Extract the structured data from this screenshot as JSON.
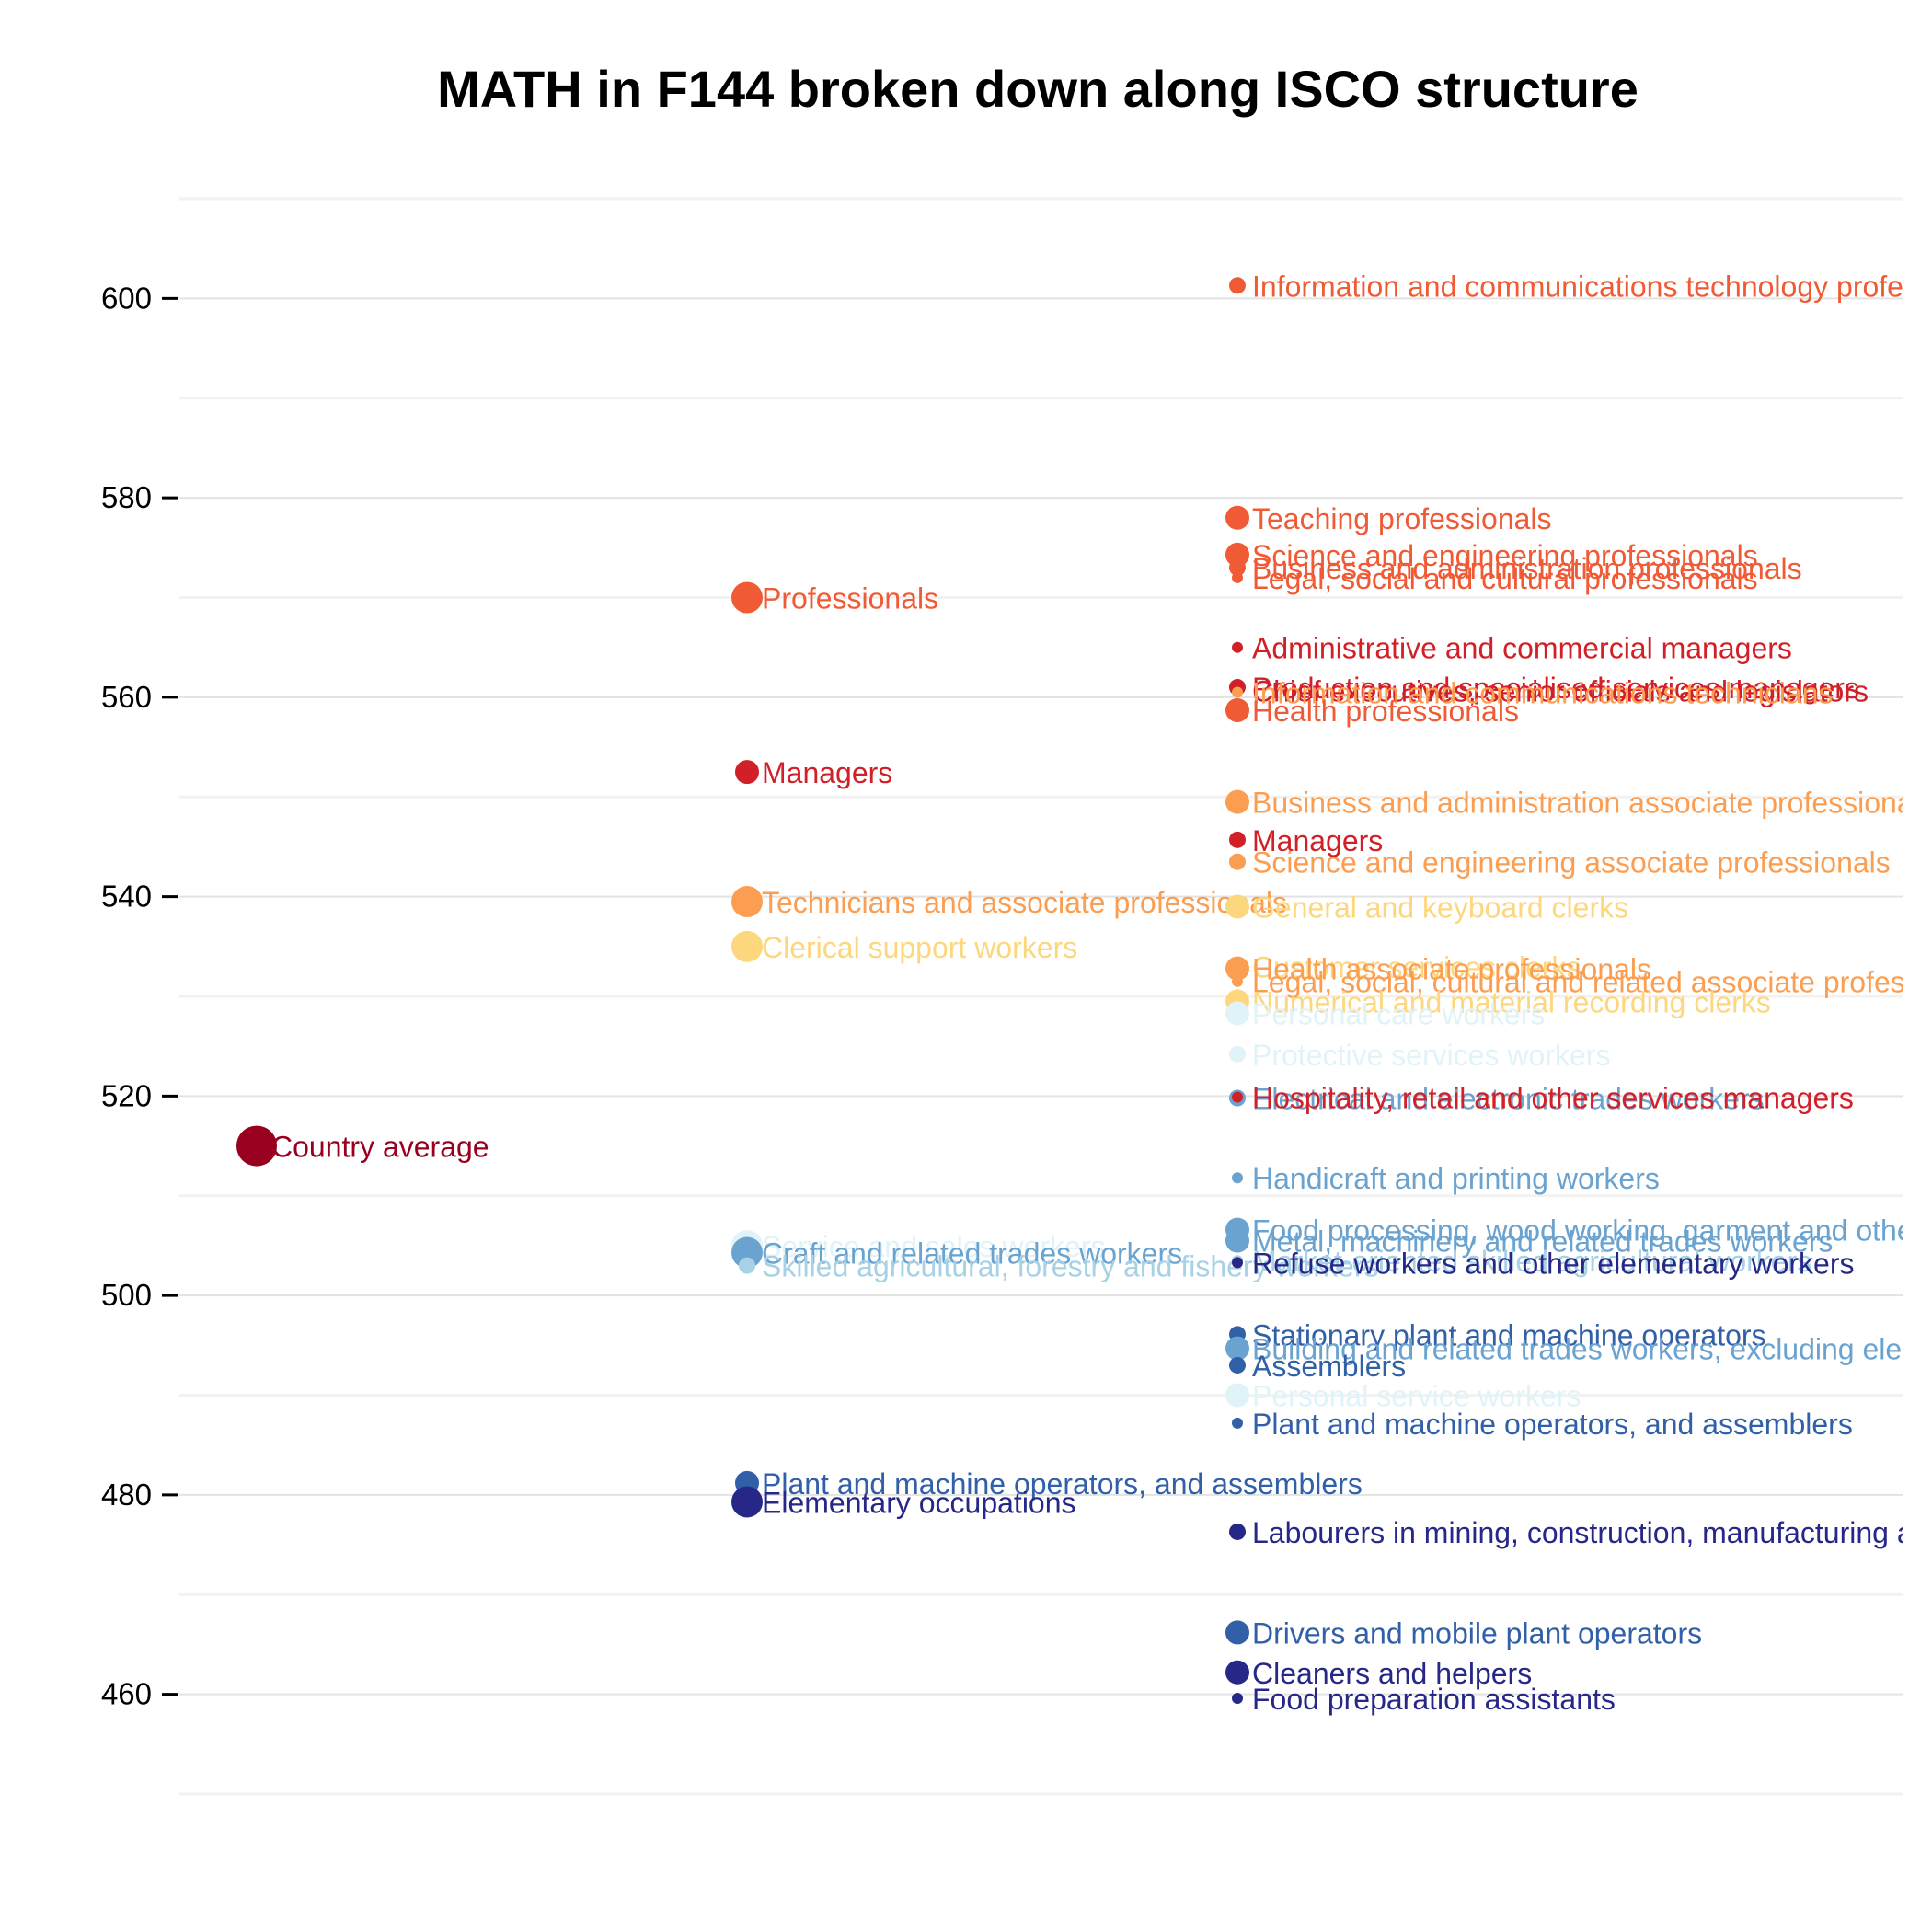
{
  "chart_data": {
    "type": "scatter",
    "title": "MATH in F144 broken down along ISCO structure",
    "xlabel": "",
    "ylabel": "",
    "ylim": [
      450,
      610
    ],
    "yticks": [
      460,
      480,
      500,
      520,
      540,
      560,
      580,
      600
    ],
    "grid": true,
    "legend": "none",
    "colors": {
      "country": "#99001f",
      "managers": "#d22028",
      "professionals": "#f05a35",
      "technicians": "#fb9e52",
      "clerical": "#fdd77e",
      "services": "#e0f3f8",
      "agricultural": "#a7d1e5",
      "craft": "#6aa3d0",
      "operators": "#3160a8",
      "elementary": "#262787"
    },
    "columns": [
      {
        "name": "level0",
        "points": [
          {
            "label": "Country average",
            "value": 515,
            "size": "xl",
            "group": "country"
          }
        ]
      },
      {
        "name": "level1",
        "points": [
          {
            "label": "Professionals",
            "value": 570,
            "size": "l",
            "group": "professionals"
          },
          {
            "label": "Managers",
            "value": 552.5,
            "size": "m",
            "group": "managers"
          },
          {
            "label": "Technicians and associate professionals",
            "value": 539.5,
            "size": "l",
            "group": "technicians"
          },
          {
            "label": "Clerical support workers",
            "value": 535,
            "size": "l",
            "group": "clerical"
          },
          {
            "label": "Service and sales workers",
            "value": 505,
            "size": "l",
            "group": "services"
          },
          {
            "label": "Craft and related trades workers",
            "value": 504.3,
            "size": "l",
            "group": "craft"
          },
          {
            "label": "Skilled agricultural, forestry and fishery workers",
            "value": 503,
            "size": "s",
            "group": "agricultural"
          },
          {
            "label": "Plant and machine operators, and assemblers",
            "value": 481.2,
            "size": "m",
            "group": "operators"
          },
          {
            "label": "Elementary occupations",
            "value": 479.3,
            "size": "l",
            "group": "elementary"
          }
        ]
      },
      {
        "name": "level2",
        "points": [
          {
            "label": "Information and communications technology professionals",
            "value": 601.3,
            "size": "s",
            "group": "professionals"
          },
          {
            "label": "Teaching professionals",
            "value": 578,
            "size": "m",
            "group": "professionals"
          },
          {
            "label": "Science and engineering professionals",
            "value": 574.3,
            "size": "m",
            "group": "professionals"
          },
          {
            "label": "Business and administration professionals",
            "value": 573,
            "size": "s",
            "group": "professionals"
          },
          {
            "label": "Legal, social and cultural professionals",
            "value": 572,
            "size": "xs",
            "group": "professionals"
          },
          {
            "label": "Administrative and commercial managers",
            "value": 565,
            "size": "xs",
            "group": "managers"
          },
          {
            "label": "Production and specialised services managers",
            "value": 561,
            "size": "s",
            "group": "managers"
          },
          {
            "label": "Chief executives, senior officials and legislators",
            "value": 560.7,
            "size": "xs",
            "group": "managers"
          },
          {
            "label": "Information and communications technicians",
            "value": 560.5,
            "size": "xs",
            "group": "technicians"
          },
          {
            "label": "Health professionals",
            "value": 558.7,
            "size": "m",
            "group": "professionals"
          },
          {
            "label": "Business and administration associate professionals",
            "value": 549.5,
            "size": "m",
            "group": "technicians"
          },
          {
            "label": "Managers",
            "value": 545.7,
            "size": "s",
            "group": "managers"
          },
          {
            "label": "Science and engineering associate professionals",
            "value": 543.5,
            "size": "s",
            "group": "technicians"
          },
          {
            "label": "General and keyboard clerks",
            "value": 539,
            "size": "m",
            "group": "clerical"
          },
          {
            "label": "Customer services clerks",
            "value": 533,
            "size": "s",
            "group": "clerical"
          },
          {
            "label": "Health associate professionals",
            "value": 532.8,
            "size": "m",
            "group": "technicians"
          },
          {
            "label": "Legal, social, cultural and related associate professionals",
            "value": 531.5,
            "size": "xs",
            "group": "technicians"
          },
          {
            "label": "Numerical and material recording clerks",
            "value": 529.5,
            "size": "m",
            "group": "clerical"
          },
          {
            "label": "Personal care workers",
            "value": 528.3,
            "size": "m",
            "group": "services"
          },
          {
            "label": "Protective services workers",
            "value": 524.2,
            "size": "s",
            "group": "services"
          },
          {
            "label": "Electrical and electronic trades workers",
            "value": 519.8,
            "size": "s",
            "group": "craft"
          },
          {
            "label": "Hospitality, retail and other services managers",
            "value": 519.9,
            "size": "xs",
            "group": "managers"
          },
          {
            "label": "Handicraft and printing workers",
            "value": 511.8,
            "size": "xs",
            "group": "craft"
          },
          {
            "label": "Food processing, wood working, garment and other craft and related trades workers",
            "value": 506.6,
            "size": "m",
            "group": "craft"
          },
          {
            "label": "Metal, machinery and related trades workers",
            "value": 505.5,
            "size": "m",
            "group": "craft"
          },
          {
            "label": "Market-oriented skilled agricultural workers",
            "value": 503.5,
            "size": "xs",
            "group": "agricultural"
          },
          {
            "label": "Refuse workers and other elementary workers",
            "value": 503.3,
            "size": "xs",
            "group": "elementary"
          },
          {
            "label": "Stationary plant and machine operators",
            "value": 496.1,
            "size": "s",
            "group": "operators"
          },
          {
            "label": "Building and related trades workers, excluding electricians",
            "value": 494.7,
            "size": "m",
            "group": "craft"
          },
          {
            "label": "Assemblers",
            "value": 493,
            "size": "s",
            "group": "operators"
          },
          {
            "label": "Personal service workers",
            "value": 490,
            "size": "m",
            "group": "services"
          },
          {
            "label": "Plant and machine operators, and assemblers",
            "value": 487.2,
            "size": "xs",
            "group": "operators"
          },
          {
            "label": "Labourers in mining, construction, manufacturing and transport",
            "value": 476.3,
            "size": "s",
            "group": "elementary"
          },
          {
            "label": "Drivers and mobile plant operators",
            "value": 466.2,
            "size": "m",
            "group": "operators"
          },
          {
            "label": "Cleaners and helpers",
            "value": 462.2,
            "size": "m",
            "group": "elementary"
          },
          {
            "label": "Food preparation assistants",
            "value": 459.6,
            "size": "xs",
            "group": "elementary"
          }
        ]
      }
    ]
  }
}
